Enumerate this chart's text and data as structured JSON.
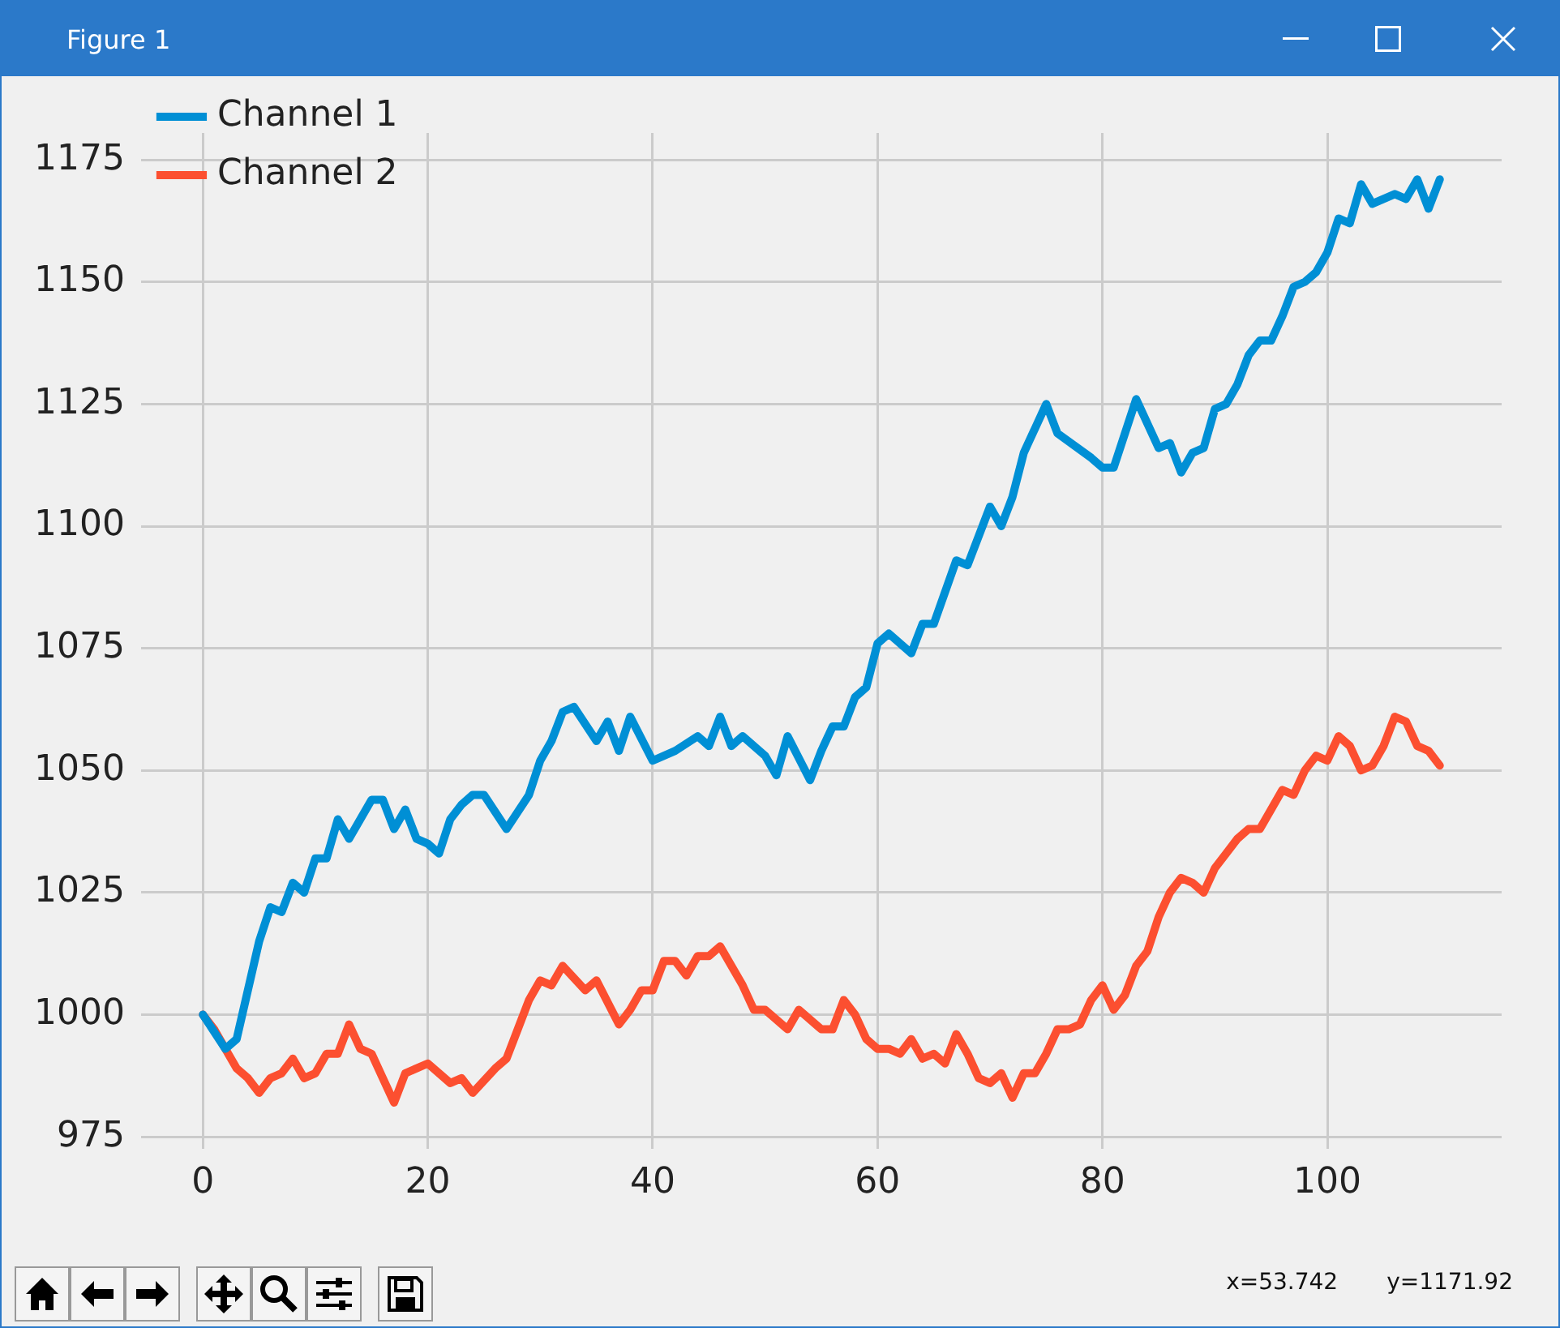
{
  "chart_data": {
    "type": "line",
    "title": "Figure 1",
    "annotations": [
      "x=53.742",
      "y=1171.92"
    ],
    "series": [
      {
        "name": "Channel 1",
        "color": "#008fd5",
        "x": [
          0,
          2,
          3,
          5,
          6,
          7,
          8,
          9,
          10,
          11,
          12,
          13,
          14,
          15,
          16,
          17,
          18,
          19,
          20,
          21,
          22,
          23,
          24,
          25,
          27,
          29,
          30,
          31,
          32,
          33,
          35,
          36,
          37,
          38,
          40,
          42,
          44,
          45,
          46,
          47,
          48,
          50,
          51,
          52,
          54,
          55,
          56,
          57,
          58,
          59,
          60,
          61,
          63,
          64,
          65,
          67,
          68,
          70,
          71,
          72,
          73,
          75,
          76,
          79,
          80,
          81,
          83,
          85,
          86,
          87,
          88,
          89,
          90,
          91,
          92,
          93,
          94,
          95,
          96,
          97,
          98,
          99,
          100,
          101,
          102,
          103,
          104,
          106,
          107,
          108,
          109,
          110
        ],
        "values": [
          1000,
          993,
          995,
          1015,
          1022,
          1021,
          1027,
          1025,
          1032,
          1032,
          1040,
          1036,
          1040,
          1044,
          1044,
          1038,
          1042,
          1036,
          1035,
          1033,
          1040,
          1043,
          1045,
          1045,
          1038,
          1045,
          1052,
          1056,
          1062,
          1063,
          1056,
          1060,
          1054,
          1061,
          1052,
          1054,
          1057,
          1055,
          1061,
          1055,
          1057,
          1053,
          1049,
          1057,
          1048,
          1054,
          1059,
          1059,
          1065,
          1067,
          1076,
          1078,
          1074,
          1080,
          1080,
          1093,
          1092,
          1104,
          1100,
          1106,
          1115,
          1125,
          1119,
          1114,
          1112,
          1112,
          1126,
          1116,
          1117,
          1111,
          1115,
          1116,
          1124,
          1125,
          1129,
          1135,
          1138,
          1138,
          1143,
          1149,
          1150,
          1152,
          1156,
          1163,
          1162,
          1170,
          1166,
          1168,
          1167,
          1171,
          1165,
          1171
        ]
      },
      {
        "name": "Channel 2",
        "color": "#fc4f30",
        "x": [
          0,
          1,
          2,
          3,
          4,
          5,
          6,
          7,
          8,
          9,
          10,
          11,
          12,
          13,
          14,
          15,
          16,
          17,
          18,
          20,
          22,
          23,
          24,
          26,
          27,
          28,
          29,
          30,
          31,
          32,
          34,
          35,
          37,
          38,
          39,
          40,
          41,
          42,
          43,
          44,
          45,
          46,
          48,
          49,
          50,
          52,
          53,
          55,
          56,
          57,
          58,
          59,
          60,
          61,
          62,
          63,
          64,
          65,
          66,
          67,
          68,
          69,
          70,
          71,
          72,
          73,
          74,
          75,
          76,
          77,
          78,
          79,
          80,
          81,
          82,
          83,
          84,
          85,
          86,
          87,
          88,
          89,
          90,
          91,
          92,
          93,
          94,
          95,
          96,
          97,
          98,
          99,
          100,
          101,
          102,
          103,
          104,
          105,
          106,
          107,
          108,
          109,
          110
        ],
        "values": [
          1000,
          997,
          993,
          989,
          987,
          984,
          987,
          988,
          991,
          987,
          988,
          992,
          992,
          998,
          993,
          992,
          987,
          982,
          988,
          990,
          986,
          987,
          984,
          989,
          991,
          997,
          1003,
          1007,
          1006,
          1010,
          1005,
          1007,
          998,
          1001,
          1005,
          1005,
          1011,
          1011,
          1008,
          1012,
          1012,
          1014,
          1006,
          1001,
          1001,
          997,
          1001,
          997,
          997,
          1003,
          1000,
          995,
          993,
          993,
          992,
          995,
          991,
          992,
          990,
          996,
          992,
          987,
          986,
          988,
          983,
          988,
          988,
          992,
          997,
          997,
          998,
          1003,
          1006,
          1001,
          1004,
          1010,
          1013,
          1020,
          1025,
          1028,
          1027,
          1025,
          1030,
          1033,
          1036,
          1038,
          1038,
          1042,
          1046,
          1045,
          1050,
          1053,
          1052,
          1057,
          1055,
          1050,
          1051,
          1055,
          1061,
          1060,
          1055,
          1054,
          1051
        ]
      }
    ],
    "xlim": [
      -5.5,
      115.5
    ],
    "xticks": [
      0,
      20,
      40,
      60,
      80,
      100
    ],
    "ylim": [
      972.5,
      1180.5
    ],
    "yticks": [
      975,
      1000,
      1025,
      1050,
      1075,
      1100,
      1125,
      1150,
      1175
    ],
    "grid": true,
    "legend": "top left",
    "marker": "none",
    "line_style": "solid"
  }
}
